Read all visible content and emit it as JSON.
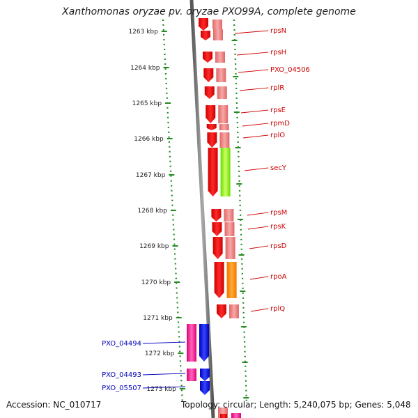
{
  "title": "Xanthomonas oryzae pv. oryzae PXO99A, complete genome",
  "accession_text": "Accession: NC_010717",
  "topology_text": "Topology: circular; Length: 5,240,075 bp; Genes: 5,048",
  "ruler_labels": [
    "1263 kbp",
    "1264 kbp",
    "1265 kbp",
    "1266 kbp",
    "1267 kbp",
    "1268 kbp",
    "1269 kbp",
    "1270 kbp",
    "1271 kbp",
    "1272 kbp",
    "1273 kbp"
  ],
  "genes_right": [
    "rpsN",
    "rpsH",
    "PXO_04506",
    "rplR",
    "rpsE",
    "rpmD",
    "rplO",
    "secY",
    "rpsM",
    "rpsK",
    "rpsD",
    "rpoA",
    "rplQ"
  ],
  "genes_left": [
    "PXO_04494",
    "PXO_04493",
    "PXO_05507"
  ],
  "colors": {
    "ruler": "#228b22",
    "backbone": "#777777",
    "gene_red": "#ff0000",
    "gene_pink": "#f08080",
    "gene_lime": "#99ff33",
    "gene_orange": "#ff8c00",
    "gene_blue": "#0000ee",
    "gene_magenta": "#ff2299",
    "label_red": "#cc0000",
    "label_blue": "#0000bb"
  }
}
